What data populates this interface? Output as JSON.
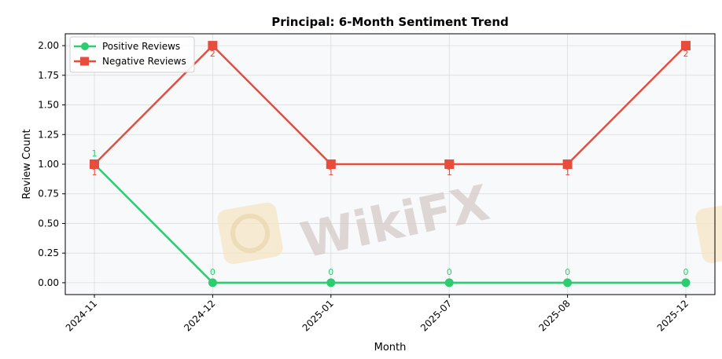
{
  "chart_data": {
    "type": "line",
    "title": "Principal: 6-Month Sentiment Trend",
    "xlabel": "Month",
    "ylabel": "Review Count",
    "categories": [
      "2024-11",
      "2024-12",
      "2025-01",
      "2025-07",
      "2025-08",
      "2025-12"
    ],
    "ylim": [
      -0.1,
      2.1
    ],
    "yticks": [
      0.0,
      0.25,
      0.5,
      0.75,
      1.0,
      1.25,
      1.5,
      1.75,
      2.0
    ],
    "ytick_labels": [
      "0.00",
      "0.25",
      "0.50",
      "0.75",
      "1.00",
      "1.25",
      "1.50",
      "1.75",
      "2.00"
    ],
    "grid": true,
    "legend_position": "top-left",
    "series": [
      {
        "name": "Positive Reviews",
        "values": [
          1,
          0,
          0,
          0,
          0,
          0
        ],
        "color": "#2ecc71",
        "marker": "circle"
      },
      {
        "name": "Negative Reviews",
        "values": [
          1,
          2,
          1,
          1,
          1,
          2
        ],
        "color": "#e74c3c",
        "marker": "square"
      }
    ]
  },
  "watermark": {
    "text": "WikiFX"
  },
  "colors": {
    "plot_background": "#f8f9fb",
    "grid": "#dcdcdc",
    "watermark": "#d6c9c9",
    "watermark_logo": "#f5e6c0"
  }
}
